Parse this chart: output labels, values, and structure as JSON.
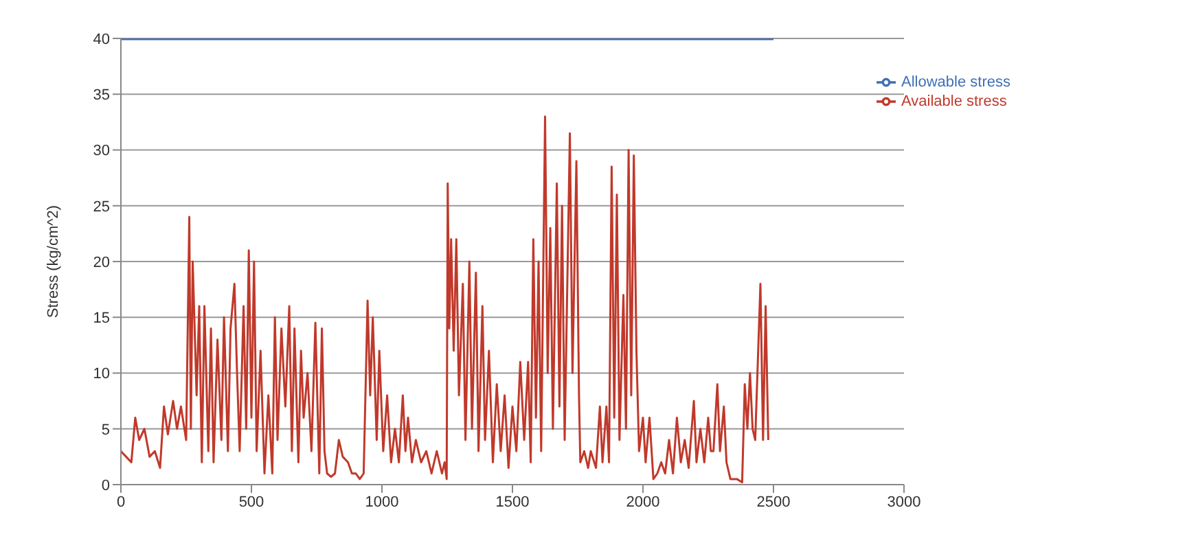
{
  "chart_data": {
    "type": "line",
    "ylabel": "Stress (kg/cm^2)",
    "xlim": [
      0,
      3000
    ],
    "xticks": [
      0,
      500,
      1000,
      1500,
      2000,
      2500,
      3000
    ],
    "ylim": [
      0,
      40
    ],
    "yticks": [
      0,
      5,
      10,
      15,
      20,
      25,
      30,
      35,
      40
    ],
    "grid": "y",
    "legend": "top right",
    "marker": "none",
    "line_style": "solid",
    "series": [
      {
        "name": "Allowable stress",
        "color": "#3f6fb5",
        "x": [
          0,
          2500
        ],
        "values": [
          40,
          40
        ]
      },
      {
        "name": "Available stress",
        "color": "#c0392b",
        "x": [
          0,
          20,
          40,
          55,
          70,
          90,
          110,
          130,
          150,
          165,
          180,
          200,
          215,
          230,
          250,
          262,
          268,
          275,
          290,
          300,
          310,
          320,
          335,
          345,
          355,
          370,
          385,
          395,
          410,
          420,
          435,
          445,
          455,
          470,
          480,
          490,
          500,
          510,
          520,
          535,
          550,
          565,
          580,
          590,
          600,
          615,
          630,
          645,
          655,
          665,
          680,
          690,
          700,
          715,
          730,
          745,
          760,
          770,
          780,
          790,
          805,
          820,
          835,
          850,
          870,
          885,
          900,
          915,
          930,
          945,
          955,
          965,
          980,
          990,
          1005,
          1020,
          1035,
          1050,
          1065,
          1080,
          1090,
          1100,
          1115,
          1130,
          1150,
          1170,
          1190,
          1210,
          1230,
          1240,
          1248,
          1252,
          1258,
          1265,
          1275,
          1285,
          1295,
          1310,
          1320,
          1335,
          1345,
          1360,
          1370,
          1385,
          1395,
          1410,
          1425,
          1440,
          1455,
          1470,
          1485,
          1500,
          1515,
          1530,
          1545,
          1560,
          1570,
          1580,
          1590,
          1600,
          1610,
          1625,
          1635,
          1645,
          1655,
          1670,
          1680,
          1690,
          1700,
          1720,
          1730,
          1745,
          1755,
          1760,
          1775,
          1790,
          1800,
          1820,
          1835,
          1845,
          1860,
          1870,
          1880,
          1890,
          1900,
          1910,
          1925,
          1935,
          1945,
          1955,
          1965,
          1975,
          1985,
          2000,
          2010,
          2025,
          2040,
          2055,
          2070,
          2085,
          2100,
          2115,
          2130,
          2145,
          2160,
          2175,
          2195,
          2205,
          2220,
          2235,
          2250,
          2260,
          2270,
          2285,
          2295,
          2310,
          2320,
          2335,
          2360,
          2380,
          2390,
          2400,
          2410,
          2420,
          2430,
          2450,
          2460,
          2470,
          2480
        ],
        "values": [
          3,
          2.5,
          2,
          6,
          4,
          5,
          2.5,
          3,
          1.5,
          7,
          4.5,
          7.5,
          5,
          7,
          4,
          24,
          5,
          20,
          8,
          16,
          2,
          16,
          3,
          14,
          2,
          13,
          4,
          15,
          3,
          14,
          18,
          10,
          3,
          16,
          5,
          21,
          6,
          20,
          3,
          12,
          1,
          8,
          1,
          15,
          4,
          14,
          7,
          16,
          3,
          14,
          2,
          12,
          6,
          10,
          3,
          14.5,
          1,
          14,
          3,
          1,
          0.7,
          1,
          4,
          2.5,
          2,
          1,
          1,
          0.5,
          1,
          16.5,
          8,
          15,
          4,
          12,
          3,
          8,
          2,
          5,
          2,
          8,
          3,
          6,
          2,
          4,
          2,
          3,
          1,
          3,
          1,
          2,
          0.5,
          27,
          14,
          22,
          12,
          22,
          8,
          18,
          4,
          20,
          5,
          19,
          3,
          16,
          4,
          12,
          2,
          9,
          3,
          8,
          1.5,
          7,
          3,
          11,
          4,
          11,
          2,
          22,
          6,
          20,
          3,
          33,
          10,
          23,
          5,
          27,
          7,
          25,
          4,
          31.5,
          10,
          29,
          8,
          2,
          3,
          1.5,
          3,
          1.5,
          7,
          2,
          7,
          2,
          28.5,
          6,
          26,
          4,
          17,
          5,
          30,
          8,
          29.5,
          12,
          3,
          6,
          2,
          6,
          0.5,
          1,
          2,
          1,
          4,
          1,
          6,
          2,
          4,
          1.5,
          7.5,
          2,
          5,
          2,
          6,
          3,
          3,
          9,
          3,
          7,
          2,
          0.5,
          0.5,
          0.2,
          9,
          5,
          10,
          5,
          4,
          18,
          4,
          16,
          4
        ]
      }
    ]
  }
}
